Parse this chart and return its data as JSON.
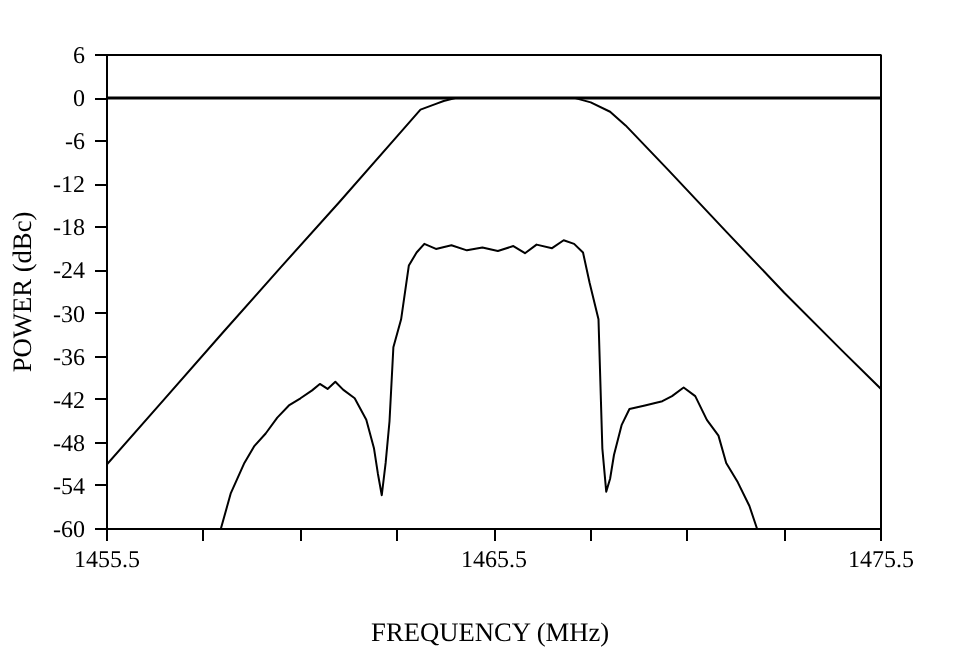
{
  "chart_data": {
    "type": "line",
    "xlabel": "FREQUENCY  (MHz)",
    "ylabel": "POWER (dBc)",
    "xlim": [
      1455.5,
      1475.5
    ],
    "ylim": [
      -60,
      6
    ],
    "xticks": [
      1455.5,
      {
        "value": 1458,
        "label": null
      },
      {
        "value": 1460.5,
        "label": null
      },
      {
        "value": 1463,
        "label": null
      },
      1465.5,
      {
        "value": 1468,
        "label": null
      },
      {
        "value": 1470.5,
        "label": null
      },
      {
        "value": 1473,
        "label": null
      },
      1475.5
    ],
    "yticks": [
      6,
      0,
      -6,
      -12,
      -18,
      -24,
      -30,
      -36,
      -42,
      -48,
      -54,
      -60
    ],
    "grid": false,
    "marker": "none",
    "line_style": "solid",
    "ref_lines": [
      {
        "axis": "y",
        "value": 0,
        "color": "#000000"
      }
    ],
    "series": [
      {
        "color": "#000000",
        "x": [
          1455.5,
          1457,
          1458.5,
          1460,
          1461.5,
          1463,
          1463.6,
          1464,
          1464.2,
          1464.5,
          1467.6,
          1468,
          1468.5,
          1468.9,
          1470,
          1471.5,
          1473,
          1474.5,
          1475.5
        ],
        "values": [
          -51,
          -41.8,
          -32.6,
          -23.5,
          -14.5,
          -5.3,
          -1.6,
          -0.8,
          -0.4,
          0,
          0,
          -0.6,
          -1.9,
          -3.8,
          -10,
          -18.6,
          -27.1,
          -35.2,
          -40.5
        ]
      },
      {
        "color": "#000000",
        "x": [
          1458.44,
          1458.7,
          1459.05,
          1459.3,
          1459.6,
          1459.9,
          1460.2,
          1460.5,
          1460.8,
          1461.0,
          1461.2,
          1461.4,
          1461.6,
          1461.9,
          1462.2,
          1462.4,
          1462.5,
          1462.6,
          1462.7,
          1462.8,
          1462.9,
          1463.1,
          1463.3,
          1463.5,
          1463.7,
          1464,
          1464.4,
          1464.8,
          1465.2,
          1465.6,
          1466,
          1466.3,
          1466.6,
          1467,
          1467.3,
          1467.57,
          1467.8,
          1467.97,
          1468.2,
          1468.3,
          1468.4,
          1468.5,
          1468.6,
          1468.8,
          1469,
          1469.4,
          1469.85,
          1470.1,
          1470.4,
          1470.7,
          1471,
          1471.3,
          1471.5,
          1471.8,
          1472.1,
          1472.3
        ],
        "values": [
          -60,
          -55,
          -50.8,
          -48.5,
          -46.7,
          -44.5,
          -42.8,
          -41.8,
          -40.7,
          -39.8,
          -40.5,
          -39.5,
          -40.6,
          -41.8,
          -44.8,
          -48.8,
          -52.3,
          -55.3,
          -50.8,
          -45,
          -34.7,
          -30.8,
          -23.3,
          -21.5,
          -20.3,
          -21,
          -20.5,
          -21.2,
          -20.8,
          -21.3,
          -20.6,
          -21.6,
          -20.4,
          -20.9,
          -19.8,
          -20.3,
          -21.5,
          -25.7,
          -30.8,
          -48.8,
          -54.8,
          -53,
          -49.7,
          -45.5,
          -43.3,
          -42.8,
          -42.2,
          -41.5,
          -40.3,
          -41.5,
          -44.8,
          -47,
          -50.8,
          -53.5,
          -56.8,
          -60
        ]
      }
    ]
  }
}
